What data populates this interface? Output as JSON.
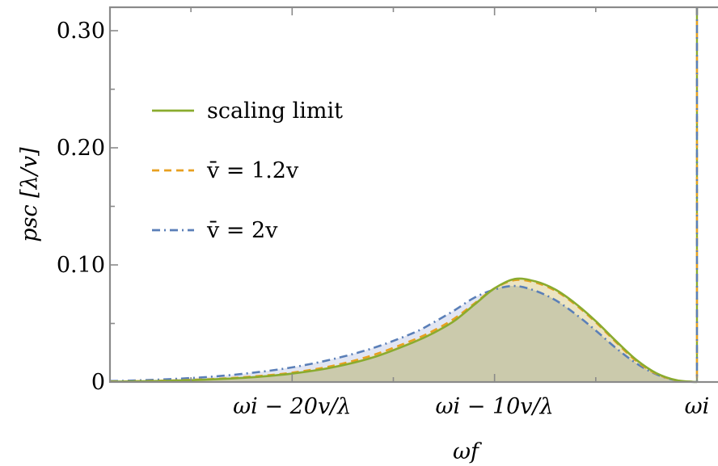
{
  "chart_data": {
    "type": "area",
    "title": "",
    "xlabel": "ωf",
    "ylabel": "psc [λ/v]",
    "ylim": [
      0,
      0.32
    ],
    "xlim": [
      -29,
      0.6
    ],
    "x_unit_note": "x measured in units of v/λ relative to ωi",
    "yticks": [
      {
        "value": 0,
        "label": "0"
      },
      {
        "value": 0.1,
        "label": "0.10"
      },
      {
        "value": 0.2,
        "label": "0.20"
      },
      {
        "value": 0.3,
        "label": "0.30"
      }
    ],
    "xticks": [
      {
        "value": -20,
        "label": "ωi − 20v/λ"
      },
      {
        "value": -10,
        "label": "ωi − 10v/λ"
      },
      {
        "value": 0,
        "label": "ωi"
      }
    ],
    "legend_position": "upper-left",
    "series": [
      {
        "name": "scaling limit",
        "color": "#8aab2e",
        "fill": "#e8e3bd",
        "dash": "solid",
        "x": [
          -29,
          -28,
          -26,
          -24,
          -22,
          -20,
          -18,
          -16,
          -14,
          -13,
          -12,
          -11,
          -10,
          -9,
          -8,
          -7,
          -6,
          -5,
          -4,
          -3,
          -2,
          -1,
          0
        ],
        "values": [
          0.0003,
          0.0005,
          0.0011,
          0.0022,
          0.004,
          0.0072,
          0.0125,
          0.021,
          0.034,
          0.042,
          0.052,
          0.066,
          0.08,
          0.088,
          0.086,
          0.079,
          0.067,
          0.052,
          0.035,
          0.019,
          0.0075,
          0.0015,
          0
        ]
      },
      {
        "name": "v̄ = 1.2v",
        "color": "#e8a020",
        "fill": "#f2ddb5",
        "dash": "dash",
        "x": [
          -29,
          -28,
          -26,
          -24,
          -22,
          -20,
          -18,
          -16,
          -14,
          -13,
          -12,
          -11,
          -10,
          -9,
          -8,
          -7,
          -6,
          -5,
          -4,
          -3,
          -2,
          -1,
          0
        ],
        "values": [
          0.0004,
          0.0006,
          0.0013,
          0.0025,
          0.0046,
          0.008,
          0.0138,
          0.023,
          0.036,
          0.044,
          0.054,
          0.067,
          0.08,
          0.087,
          0.085,
          0.078,
          0.066,
          0.051,
          0.034,
          0.018,
          0.007,
          0.0014,
          0
        ]
      },
      {
        "name": "v̄ = 2v",
        "color": "#5a7fb8",
        "fill": "#d6dcee",
        "dash": "dashdot",
        "x": [
          -29,
          -28,
          -26,
          -24,
          -22,
          -20,
          -18,
          -16,
          -14,
          -13,
          -12,
          -11,
          -10,
          -9,
          -8,
          -7,
          -6,
          -5,
          -4,
          -3,
          -2,
          -1,
          0
        ],
        "values": [
          0.0008,
          0.0012,
          0.0025,
          0.0045,
          0.0078,
          0.0125,
          0.0195,
          0.029,
          0.042,
          0.051,
          0.061,
          0.072,
          0.079,
          0.082,
          0.078,
          0.07,
          0.058,
          0.044,
          0.029,
          0.016,
          0.0065,
          0.0013,
          0
        ]
      }
    ]
  }
}
